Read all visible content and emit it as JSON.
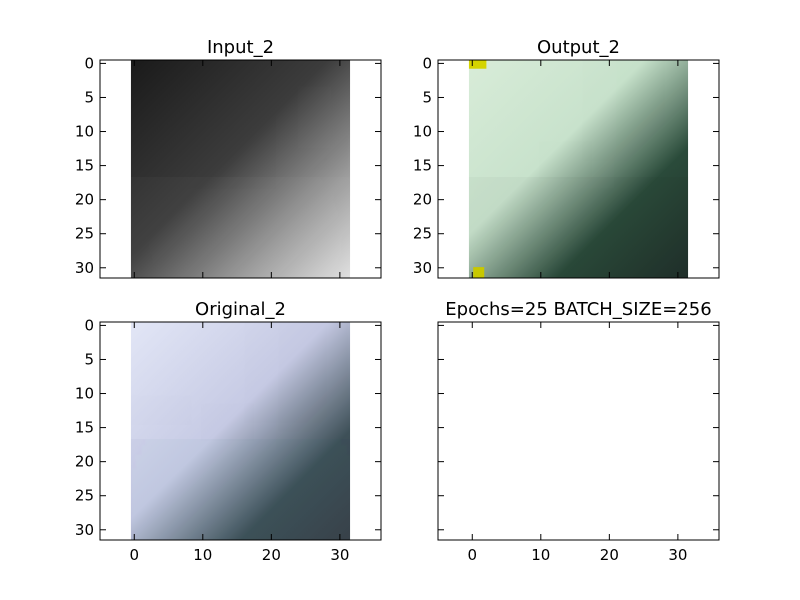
{
  "chart_data": [
    {
      "type": "image",
      "title": "Input_2",
      "xlim": [
        -5,
        36
      ],
      "ylim": [
        31.5,
        -0.5
      ],
      "image_extent": [
        -0.5,
        31.5
      ],
      "colormap": "gray",
      "xticks": [
        0,
        10,
        20,
        30
      ],
      "yticks": [
        0,
        5,
        10,
        15,
        20,
        25,
        30
      ],
      "show_xticklabels": false,
      "show_yticklabels": true
    },
    {
      "type": "image",
      "title": "Output_2",
      "xlim": [
        -5,
        36
      ],
      "ylim": [
        31.5,
        -0.5
      ],
      "image_extent": [
        -0.5,
        31.5
      ],
      "colormap": "rgb",
      "xticks": [
        0,
        10,
        20,
        30
      ],
      "yticks": [
        0,
        5,
        10,
        15,
        20,
        25,
        30
      ],
      "show_xticklabels": false,
      "show_yticklabels": true
    },
    {
      "type": "image",
      "title": "Original_2",
      "xlim": [
        -5,
        36
      ],
      "ylim": [
        31.5,
        -0.5
      ],
      "image_extent": [
        -0.5,
        31.5
      ],
      "colormap": "rgb",
      "xticks": [
        0,
        10,
        20,
        30
      ],
      "yticks": [
        0,
        5,
        10,
        15,
        20,
        25,
        30
      ],
      "show_xticklabels": true,
      "show_yticklabels": true
    },
    {
      "type": "empty",
      "title": "Epochs=25 BATCH_SIZE=256",
      "xlim": [
        -5,
        36
      ],
      "ylim": [
        31.5,
        -0.5
      ],
      "xticks": [
        0,
        10,
        20,
        30
      ],
      "yticks": [
        0,
        5,
        10,
        15,
        20,
        25,
        30
      ],
      "show_xticklabels": true,
      "show_yticklabels": false
    }
  ]
}
